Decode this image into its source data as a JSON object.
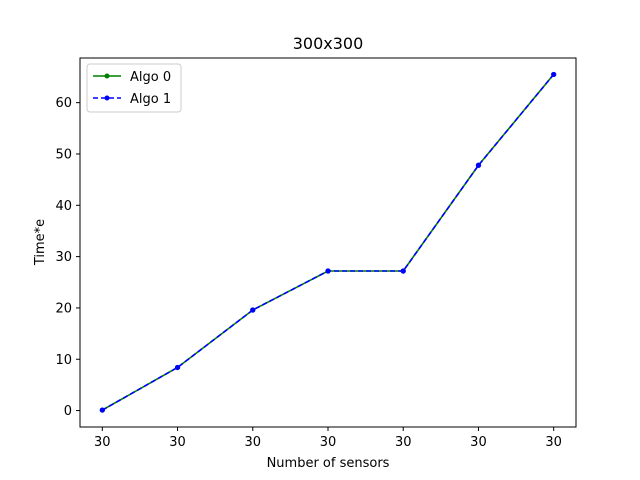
{
  "chart_data": {
    "type": "line",
    "title": "300x300",
    "xlabel": "Number of sensors",
    "ylabel": "Time*e",
    "categories": [
      "30",
      "30",
      "30",
      "30",
      "30",
      "30",
      "30"
    ],
    "series": [
      {
        "name": "Algo 0",
        "values": [
          0.1,
          8.4,
          19.6,
          27.2,
          27.2,
          47.8,
          65.5
        ],
        "color": "#008000",
        "line_style": "solid",
        "marker": "dot"
      },
      {
        "name": "Algo 1",
        "values": [
          0.1,
          8.4,
          19.6,
          27.2,
          27.2,
          47.8,
          65.5
        ],
        "color": "#0000ff",
        "line_style": "dashed",
        "marker": "dot"
      }
    ],
    "yticks": [
      0,
      10,
      20,
      30,
      40,
      50,
      60
    ],
    "ylim": [
      -3.2,
      68.7
    ],
    "grid": false,
    "legend_position": "top-left"
  }
}
